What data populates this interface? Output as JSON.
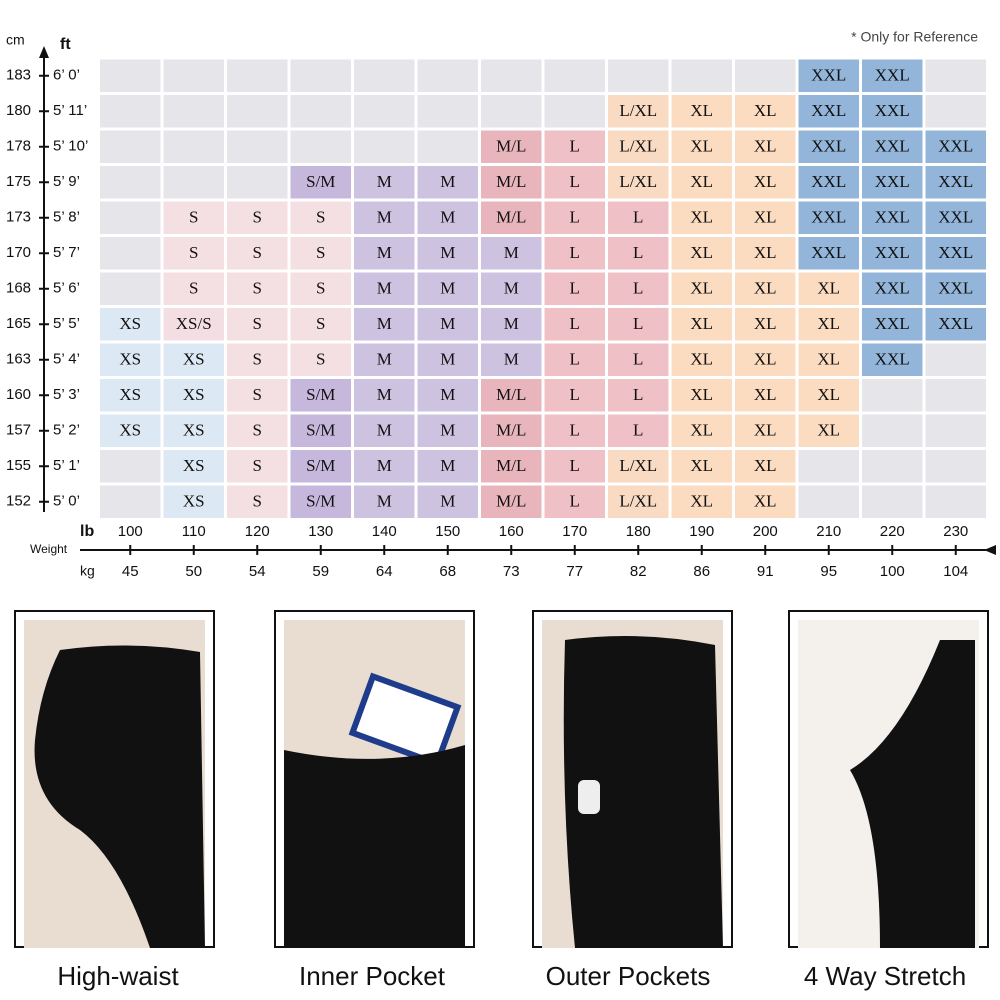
{
  "note": "* Only for Reference",
  "labels": {
    "cm": "cm",
    "ft": "ft",
    "lb": "lb",
    "weight": "Weight",
    "kg": "kg"
  },
  "heights": [
    {
      "cm": 183,
      "ft": "6’ 0’"
    },
    {
      "cm": 180,
      "ft": "5’ 11’"
    },
    {
      "cm": 178,
      "ft": "5’ 10’"
    },
    {
      "cm": 175,
      "ft": "5’ 9’"
    },
    {
      "cm": 173,
      "ft": "5’ 8’"
    },
    {
      "cm": 170,
      "ft": "5’ 7’"
    },
    {
      "cm": 168,
      "ft": "5’ 6’"
    },
    {
      "cm": 165,
      "ft": "5’ 5’"
    },
    {
      "cm": 163,
      "ft": "5’ 4’"
    },
    {
      "cm": 160,
      "ft": "5’ 3’"
    },
    {
      "cm": 157,
      "ft": "5’ 2’"
    },
    {
      "cm": 155,
      "ft": "5’ 1’"
    },
    {
      "cm": 152,
      "ft": "5’ 0’"
    }
  ],
  "weights": [
    {
      "lb": 100,
      "kg": 45
    },
    {
      "lb": 110,
      "kg": 50
    },
    {
      "lb": 120,
      "kg": 54
    },
    {
      "lb": 130,
      "kg": 59
    },
    {
      "lb": 140,
      "kg": 64
    },
    {
      "lb": 150,
      "kg": 68
    },
    {
      "lb": 160,
      "kg": 73
    },
    {
      "lb": 170,
      "kg": 77
    },
    {
      "lb": 180,
      "kg": 82
    },
    {
      "lb": 190,
      "kg": 86
    },
    {
      "lb": 200,
      "kg": 91
    },
    {
      "lb": 210,
      "kg": 95
    },
    {
      "lb": 220,
      "kg": 100
    },
    {
      "lb": 230,
      "kg": 104
    }
  ],
  "sizes": [
    [
      null,
      null,
      null,
      null,
      null,
      null,
      null,
      null,
      null,
      null,
      null,
      "XXL",
      "XXL",
      null
    ],
    [
      null,
      null,
      null,
      null,
      null,
      null,
      null,
      null,
      "L/XL",
      "XL",
      "XL",
      "XXL",
      "XXL",
      null
    ],
    [
      null,
      null,
      null,
      null,
      null,
      null,
      "M/L",
      "L",
      "L/XL",
      "XL",
      "XL",
      "XXL",
      "XXL",
      "XXL"
    ],
    [
      null,
      null,
      null,
      "S/M",
      "M",
      "M",
      "M/L",
      "L",
      "L/XL",
      "XL",
      "XL",
      "XXL",
      "XXL",
      "XXL"
    ],
    [
      null,
      "S",
      "S",
      "S",
      "M",
      "M",
      "M/L",
      "L",
      "L",
      "XL",
      "XL",
      "XXL",
      "XXL",
      "XXL"
    ],
    [
      null,
      "S",
      "S",
      "S",
      "M",
      "M",
      "M",
      "L",
      "L",
      "XL",
      "XL",
      "XXL",
      "XXL",
      "XXL"
    ],
    [
      null,
      "S",
      "S",
      "S",
      "M",
      "M",
      "M",
      "L",
      "L",
      "XL",
      "XL",
      "XL",
      "XXL",
      "XXL"
    ],
    [
      "XS",
      "XS/S",
      "S",
      "S",
      "M",
      "M",
      "M",
      "L",
      "L",
      "XL",
      "XL",
      "XL",
      "XXL",
      "XXL"
    ],
    [
      "XS",
      "XS",
      "S",
      "S",
      "M",
      "M",
      "M",
      "L",
      "L",
      "XL",
      "XL",
      "XL",
      "XXL",
      null
    ],
    [
      "XS",
      "XS",
      "S",
      "S/M",
      "M",
      "M",
      "M/L",
      "L",
      "L",
      "XL",
      "XL",
      "XL",
      null,
      null
    ],
    [
      "XS",
      "XS",
      "S",
      "S/M",
      "M",
      "M",
      "M/L",
      "L",
      "L",
      "XL",
      "XL",
      "XL",
      null,
      null
    ],
    [
      null,
      "XS",
      "S",
      "S/M",
      "M",
      "M",
      "M/L",
      "L",
      "L/XL",
      "XL",
      "XL",
      null,
      null,
      null
    ],
    [
      null,
      "XS",
      "S",
      "S/M",
      "M",
      "M",
      "M/L",
      "L",
      "L/XL",
      "XL",
      "XL",
      null,
      null,
      null
    ]
  ],
  "size_colors": {
    "XS": "#dce8f3",
    "XS/S": "#f3dfe3",
    "S": "#f4dfe2",
    "S/M": "#c5b8dc",
    "M": "#cdc3e1",
    "M/L": "#e8b5bc",
    "L": "#efc1c6",
    "L/XL": "#f9dac2",
    "XL": "#fbdcc0",
    "XXL": "#92b5d9"
  },
  "empty_color": "#e6e6ea",
  "features": [
    {
      "caption": "High-waist"
    },
    {
      "caption": "Inner Pocket"
    },
    {
      "caption": "Outer Pockets"
    },
    {
      "caption": "4 Way Stretch"
    }
  ]
}
